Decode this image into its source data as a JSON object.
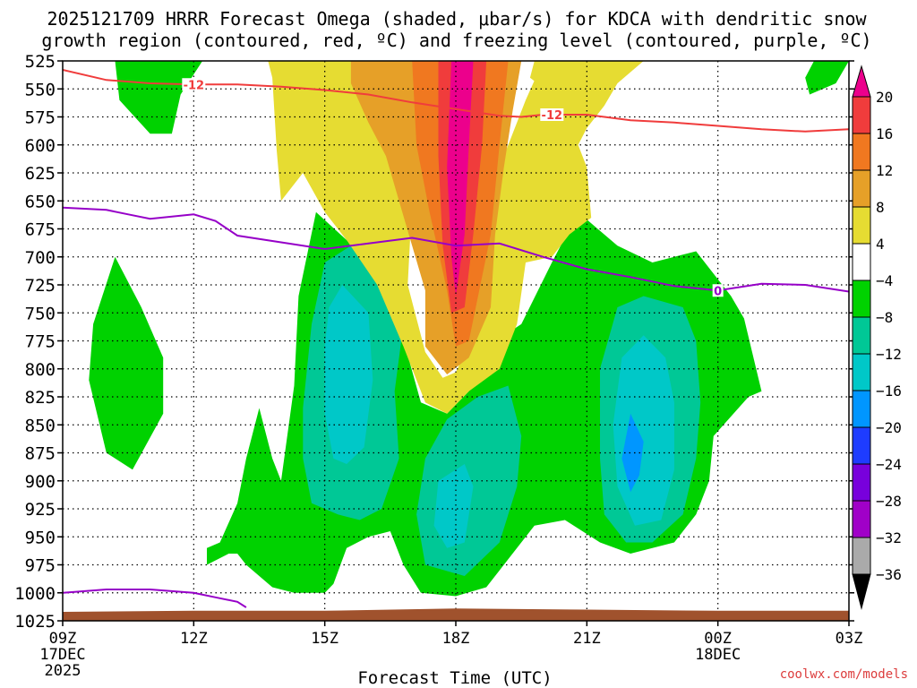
{
  "chart_data": {
    "type": "contour",
    "title_line1": "2025121709 HRRR Forecast Omega (shaded, μbar/s) for KDCA with dendritic snow",
    "title_line2": "growth region (contoured, red, ºC) and freezing level (contoured, purple, ºC)",
    "xlabel": "Forecast Time (UTC)",
    "credit": "coolwx.com/models",
    "x_hours": [
      9,
      12,
      15,
      18,
      21,
      24,
      27
    ],
    "x_tick_labels": [
      "09Z",
      "12Z",
      "15Z",
      "18Z",
      "21Z",
      "00Z",
      "03Z"
    ],
    "date_labels": [
      {
        "hour": 9,
        "text": "17DEC",
        "year": "2025"
      },
      {
        "hour": 24,
        "text": "18DEC"
      }
    ],
    "y_pressure_hpa": [
      525,
      550,
      575,
      600,
      625,
      650,
      675,
      700,
      725,
      750,
      775,
      800,
      825,
      850,
      875,
      900,
      925,
      950,
      975,
      1000,
      1025
    ],
    "y_tick_labels": [
      "525",
      "550",
      "575",
      "600",
      "625",
      "650",
      "675",
      "700",
      "725",
      "750",
      "775",
      "800",
      "825",
      "850",
      "875",
      "900",
      "925",
      "950",
      "975",
      "1000",
      "1025"
    ],
    "ylim": [
      525,
      1025
    ],
    "xlim": [
      9,
      27
    ],
    "colorbar": {
      "labels": [
        "20",
        "16",
        "12",
        "8",
        "4",
        "−4",
        "−8",
        "−12",
        "−16",
        "−20",
        "−24",
        "−28",
        "−32",
        "−36"
      ],
      "colors": [
        "#ec008c",
        "#f03c3c",
        "#f07820",
        "#e6a028",
        "#e6dc32",
        "#ffffff",
        "#00d200",
        "#00c896",
        "#00c8c8",
        "#0096ff",
        "#1e3cff",
        "#7800dc",
        "#a000c8",
        "#aaaaaa"
      ]
    },
    "colors": {
      "green": "#00d200",
      "teal": "#00c896",
      "cyan": "#00c8c8",
      "blue": "#0096ff",
      "yellow": "#e6dc32",
      "gold": "#e6a028",
      "orange": "#f07820",
      "red": "#f03c3c",
      "magenta": "#ec008c",
      "terrain": "#a0522d",
      "dgz_line": "#f03c3c",
      "freezing_line": "#9600c8",
      "credit": "#dc3c3c"
    },
    "dgz_contour": {
      "value_label": "-12",
      "points": [
        [
          9.0,
          533
        ],
        [
          10.0,
          542
        ],
        [
          11.0,
          545
        ],
        [
          12.0,
          546
        ],
        [
          13.0,
          546
        ],
        [
          14.0,
          548
        ],
        [
          15.0,
          551
        ],
        [
          16.0,
          555
        ],
        [
          17.0,
          562
        ],
        [
          18.0,
          568
        ],
        [
          18.5,
          571
        ],
        [
          19.0,
          574
        ],
        [
          19.5,
          575
        ],
        [
          20.0,
          573
        ],
        [
          21.0,
          573
        ],
        [
          22.0,
          578
        ],
        [
          23.0,
          580
        ],
        [
          24.0,
          583
        ],
        [
          25.0,
          586
        ],
        [
          26.0,
          588
        ],
        [
          27.0,
          586
        ]
      ],
      "label_hours": [
        12.0,
        20.2
      ]
    },
    "freezing_level": {
      "value_label": "0",
      "points": [
        [
          9.0,
          656
        ],
        [
          10.0,
          658
        ],
        [
          10.5,
          662
        ],
        [
          11.0,
          666
        ],
        [
          12.0,
          662
        ],
        [
          12.5,
          668
        ],
        [
          13.0,
          681
        ],
        [
          14.0,
          687
        ],
        [
          15.0,
          693
        ],
        [
          16.0,
          688
        ],
        [
          17.0,
          683
        ],
        [
          18.0,
          690
        ],
        [
          19.0,
          688
        ],
        [
          20.0,
          700
        ],
        [
          21.0,
          711
        ],
        [
          22.0,
          718
        ],
        [
          23.0,
          726
        ],
        [
          24.0,
          730
        ],
        [
          25.0,
          724
        ],
        [
          26.0,
          725
        ],
        [
          27.0,
          731
        ]
      ],
      "label_hours": [
        24.0
      ]
    },
    "freezing_level_surface": {
      "points": [
        [
          9.0,
          1000
        ],
        [
          10.0,
          997
        ],
        [
          11.0,
          997
        ],
        [
          12.0,
          1000
        ],
        [
          12.5,
          1004
        ],
        [
          13.0,
          1008
        ],
        [
          13.2,
          1013
        ]
      ]
    },
    "terrain": {
      "points": [
        [
          9.0,
          1017
        ],
        [
          12.0,
          1016
        ],
        [
          15.0,
          1016
        ],
        [
          18.0,
          1014
        ],
        [
          21.0,
          1015
        ],
        [
          24.0,
          1016
        ],
        [
          27.0,
          1016
        ]
      ]
    },
    "omega_regions": [
      {
        "value": -4,
        "level": "green",
        "points": [
          [
            10.2,
            525
          ],
          [
            12.2,
            525
          ],
          [
            11.7,
            555
          ],
          [
            11.5,
            590
          ],
          [
            11.0,
            590
          ],
          [
            10.3,
            560
          ]
        ]
      },
      {
        "value": -4,
        "level": "green",
        "points": [
          [
            26.2,
            525
          ],
          [
            27.0,
            525
          ],
          [
            26.7,
            545
          ],
          [
            26.1,
            555
          ],
          [
            26.0,
            540
          ]
        ]
      },
      {
        "value": -4,
        "level": "green",
        "points": [
          [
            10.2,
            700
          ],
          [
            10.8,
            745
          ],
          [
            11.3,
            790
          ],
          [
            11.3,
            840
          ],
          [
            10.6,
            890
          ],
          [
            10.0,
            875
          ],
          [
            9.6,
            810
          ],
          [
            9.7,
            760
          ]
        ]
      },
      {
        "value": -4,
        "level": "green",
        "points": [
          [
            14.8,
            660
          ],
          [
            15.5,
            685
          ],
          [
            16.2,
            710
          ],
          [
            16.7,
            760
          ],
          [
            17.2,
            830
          ],
          [
            17.8,
            840
          ],
          [
            18.3,
            820
          ],
          [
            18.8,
            778
          ],
          [
            19.5,
            760
          ],
          [
            20.2,
            705
          ],
          [
            20.8,
            660
          ],
          [
            21.7,
            690
          ],
          [
            22.5,
            705
          ],
          [
            23.5,
            695
          ],
          [
            24.3,
            735
          ],
          [
            24.6,
            755
          ],
          [
            25.0,
            820
          ],
          [
            24.7,
            825
          ],
          [
            23.9,
            860
          ],
          [
            23.8,
            900
          ],
          [
            23.5,
            930
          ],
          [
            23.0,
            955
          ],
          [
            22.0,
            965
          ],
          [
            21.3,
            955
          ],
          [
            20.5,
            935
          ],
          [
            19.8,
            940
          ],
          [
            19.2,
            970
          ],
          [
            18.7,
            995
          ],
          [
            18.0,
            1003
          ],
          [
            17.2,
            1000
          ],
          [
            16.8,
            975
          ],
          [
            16.5,
            945
          ],
          [
            16.0,
            950
          ],
          [
            15.5,
            960
          ],
          [
            15.2,
            992
          ],
          [
            15.0,
            1000
          ],
          [
            14.3,
            1000
          ],
          [
            13.8,
            995
          ],
          [
            13.5,
            985
          ],
          [
            13.2,
            975
          ],
          [
            13.0,
            965
          ],
          [
            12.8,
            965
          ],
          [
            12.3,
            975
          ],
          [
            12.3,
            960
          ],
          [
            12.6,
            955
          ],
          [
            13.0,
            920
          ],
          [
            13.2,
            880
          ],
          [
            13.5,
            835
          ],
          [
            13.8,
            880
          ],
          [
            14.0,
            900
          ],
          [
            14.3,
            815
          ],
          [
            14.4,
            735
          ]
        ]
      },
      {
        "value": -8,
        "level": "teal",
        "points": [
          [
            15.6,
            690
          ],
          [
            16.3,
            705
          ],
          [
            16.8,
            760
          ],
          [
            16.6,
            820
          ],
          [
            16.7,
            880
          ],
          [
            16.3,
            925
          ],
          [
            15.8,
            935
          ],
          [
            15.3,
            930
          ],
          [
            14.7,
            920
          ],
          [
            14.5,
            880
          ],
          [
            14.5,
            835
          ],
          [
            14.7,
            760
          ],
          [
            15.0,
            705
          ]
        ]
      },
      {
        "value": -8,
        "level": "teal",
        "points": [
          [
            19.2,
            815
          ],
          [
            19.5,
            860
          ],
          [
            19.4,
            905
          ],
          [
            19.0,
            955
          ],
          [
            18.2,
            985
          ],
          [
            17.3,
            975
          ],
          [
            17.1,
            930
          ],
          [
            17.3,
            880
          ],
          [
            17.8,
            845
          ],
          [
            18.5,
            825
          ]
        ]
      },
      {
        "value": -8,
        "level": "teal",
        "points": [
          [
            22.3,
            735
          ],
          [
            23.2,
            745
          ],
          [
            23.5,
            775
          ],
          [
            23.6,
            830
          ],
          [
            23.5,
            880
          ],
          [
            23.2,
            930
          ],
          [
            22.5,
            955
          ],
          [
            21.9,
            955
          ],
          [
            21.4,
            930
          ],
          [
            21.3,
            880
          ],
          [
            21.3,
            800
          ],
          [
            21.7,
            745
          ]
        ]
      },
      {
        "value": -12,
        "level": "cyan",
        "points": [
          [
            15.4,
            725
          ],
          [
            16.0,
            750
          ],
          [
            16.1,
            810
          ],
          [
            15.9,
            870
          ],
          [
            15.5,
            885
          ],
          [
            15.2,
            880
          ],
          [
            15.0,
            840
          ],
          [
            15.0,
            780
          ],
          [
            15.1,
            745
          ]
        ]
      },
      {
        "value": -12,
        "level": "cyan",
        "points": [
          [
            18.2,
            885
          ],
          [
            18.4,
            905
          ],
          [
            18.2,
            955
          ],
          [
            17.8,
            960
          ],
          [
            17.5,
            940
          ],
          [
            17.6,
            900
          ]
        ]
      },
      {
        "value": -12,
        "level": "cyan",
        "points": [
          [
            22.3,
            770
          ],
          [
            22.8,
            790
          ],
          [
            23.0,
            830
          ],
          [
            23.0,
            890
          ],
          [
            22.7,
            935
          ],
          [
            22.1,
            940
          ],
          [
            21.7,
            905
          ],
          [
            21.6,
            850
          ],
          [
            21.8,
            790
          ]
        ]
      },
      {
        "value": -16,
        "level": "blue",
        "points": [
          [
            22.0,
            840
          ],
          [
            22.3,
            865
          ],
          [
            22.2,
            895
          ],
          [
            22.0,
            910
          ],
          [
            21.8,
            880
          ]
        ]
      },
      {
        "value": 4,
        "level": "yellow",
        "points": [
          [
            14.7,
            525
          ],
          [
            17.0,
            525
          ],
          [
            17.3,
            580
          ],
          [
            17.0,
            650
          ],
          [
            16.9,
            725
          ],
          [
            17.3,
            785
          ],
          [
            17.7,
            808
          ],
          [
            18.0,
            803
          ],
          [
            18.4,
            770
          ],
          [
            18.8,
            735
          ],
          [
            18.8,
            680
          ],
          [
            19.0,
            620
          ],
          [
            19.6,
            560
          ],
          [
            20.0,
            525
          ],
          [
            22.3,
            525
          ],
          [
            21.7,
            545
          ],
          [
            21.4,
            565
          ],
          [
            21.0,
            585
          ],
          [
            20.8,
            600
          ],
          [
            21.0,
            620
          ],
          [
            21.1,
            665
          ],
          [
            20.6,
            680
          ],
          [
            20.2,
            700
          ],
          [
            19.6,
            705
          ],
          [
            19.4,
            760
          ],
          [
            19.0,
            800
          ],
          [
            18.3,
            820
          ],
          [
            17.8,
            840
          ],
          [
            17.3,
            830
          ],
          [
            16.8,
            780
          ],
          [
            16.2,
            725
          ],
          [
            15.5,
            685
          ],
          [
            15.0,
            660
          ],
          [
            14.5,
            625
          ],
          [
            14.0,
            650
          ],
          [
            13.9,
            605
          ],
          [
            13.8,
            540
          ],
          [
            13.7,
            525
          ]
        ]
      },
      {
        "value": 4,
        "level": "yellow",
        "points": [
          [
            19.8,
            525
          ],
          [
            21.7,
            525
          ],
          [
            21.3,
            555
          ],
          [
            20.8,
            565
          ],
          [
            20.2,
            555
          ],
          [
            19.7,
            540
          ]
        ]
      },
      {
        "value": 8,
        "level": "gold",
        "points": [
          [
            15.6,
            525
          ],
          [
            19.5,
            525
          ],
          [
            19.3,
            570
          ],
          [
            19.1,
            620
          ],
          [
            18.9,
            680
          ],
          [
            18.8,
            745
          ],
          [
            18.3,
            790
          ],
          [
            17.8,
            805
          ],
          [
            17.3,
            780
          ],
          [
            17.3,
            730
          ],
          [
            17.0,
            690
          ],
          [
            16.4,
            610
          ],
          [
            16.0,
            580
          ],
          [
            15.6,
            545
          ]
        ]
      },
      {
        "value": 12,
        "level": "orange",
        "points": [
          [
            17.0,
            525
          ],
          [
            19.2,
            525
          ],
          [
            19.0,
            600
          ],
          [
            18.8,
            680
          ],
          [
            18.3,
            775
          ],
          [
            18.0,
            780
          ],
          [
            17.8,
            730
          ],
          [
            17.4,
            660
          ],
          [
            17.1,
            600
          ]
        ]
      },
      {
        "value": 16,
        "level": "red",
        "points": [
          [
            17.6,
            525
          ],
          [
            18.7,
            525
          ],
          [
            18.6,
            600
          ],
          [
            18.4,
            680
          ],
          [
            18.2,
            745
          ],
          [
            17.9,
            750
          ],
          [
            17.7,
            690
          ],
          [
            17.6,
            610
          ]
        ]
      },
      {
        "value": 20,
        "level": "magenta",
        "points": [
          [
            17.9,
            525
          ],
          [
            18.4,
            525
          ],
          [
            18.3,
            600
          ],
          [
            18.2,
            680
          ],
          [
            18.0,
            735
          ],
          [
            17.9,
            700
          ],
          [
            17.8,
            620
          ]
        ]
      }
    ]
  }
}
